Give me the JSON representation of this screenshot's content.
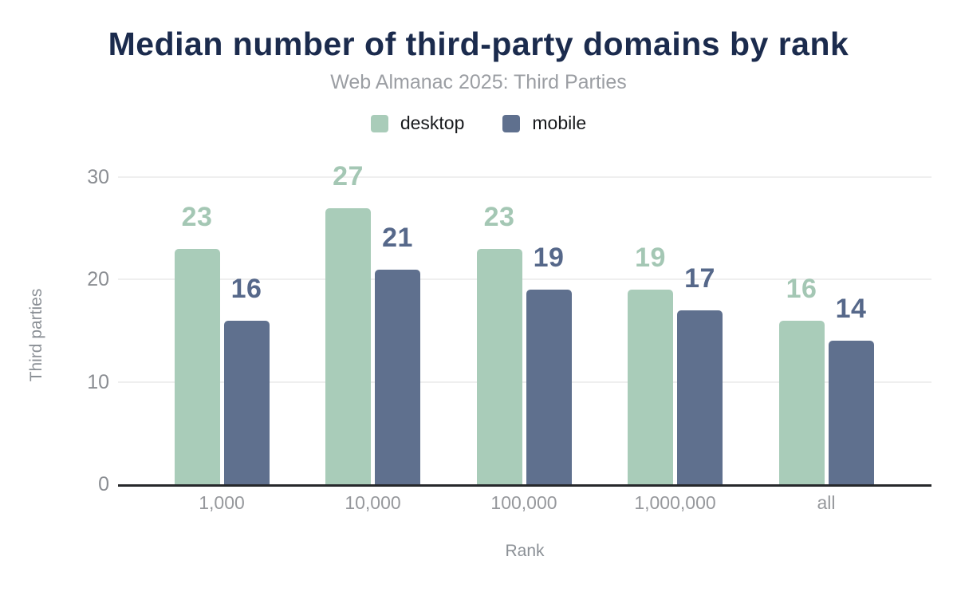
{
  "header": {
    "title": "Median number of third-party domains by rank",
    "subtitle": "Web Almanac 2025: Third Parties"
  },
  "legend": [
    {
      "label": "desktop",
      "color": "#a9ccb9"
    },
    {
      "label": "mobile",
      "color": "#5f708e"
    }
  ],
  "axes": {
    "y_title": "Third parties",
    "x_title": "Rank"
  },
  "chart_data": {
    "type": "bar",
    "title": "Median number of third-party domains by rank",
    "subtitle": "Web Almanac 2025: Third Parties",
    "categories": [
      "1,000",
      "10,000",
      "100,000",
      "1,000,000",
      "all"
    ],
    "series": [
      {
        "name": "desktop",
        "color": "#a9ccb9",
        "label_color": "#a4c7b4",
        "values": [
          23,
          27,
          23,
          19,
          16
        ]
      },
      {
        "name": "mobile",
        "color": "#5f708e",
        "label_color": "#56688a",
        "values": [
          16,
          21,
          19,
          17,
          14
        ]
      }
    ],
    "xlabel": "Rank",
    "ylabel": "Third parties",
    "yticks": [
      0,
      10,
      20,
      30
    ],
    "ylim": [
      0,
      30
    ],
    "grid": true,
    "legend_position": "top",
    "data_labels": true
  },
  "colors": {
    "title": "#1b2b4d",
    "subtitle": "#9b9ea3",
    "axis_line": "#26282b",
    "gridline": "#efefef",
    "tick_text": "#8a8d92",
    "category_text": "#96989c",
    "axis_title_text": "#8b9096",
    "legend_text": "#17191c",
    "background": "#ffffff"
  }
}
